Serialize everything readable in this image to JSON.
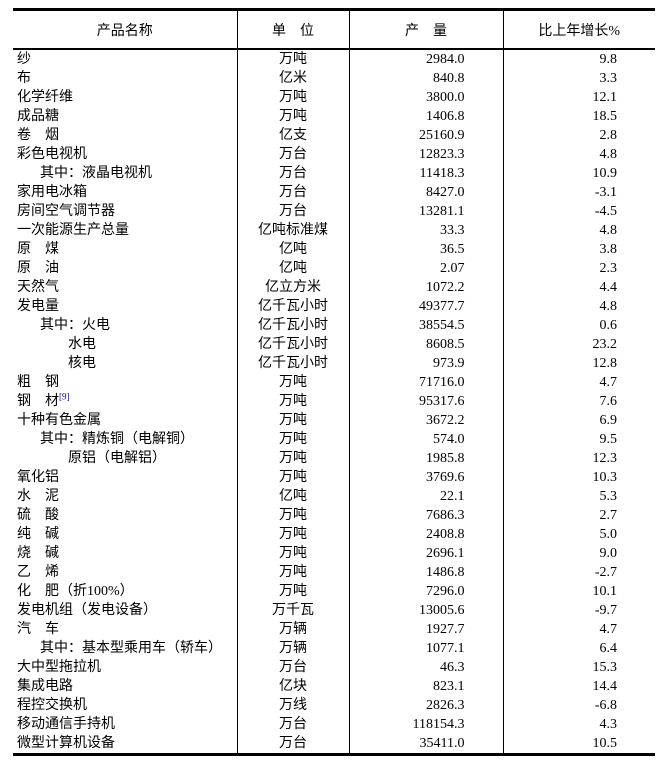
{
  "table": {
    "headers": {
      "name": "产品名称",
      "unit": "单　位",
      "output": "产　量",
      "growth": "比上年增长%"
    },
    "footnote_link_color": "#000099",
    "rows": [
      {
        "name": "纱",
        "indent": 0,
        "unit": "万吨",
        "output": "2984.0",
        "growth": "9.8"
      },
      {
        "name": "布",
        "indent": 0,
        "unit": "亿米",
        "output": "840.8",
        "growth": "3.3"
      },
      {
        "name": "化学纤维",
        "indent": 0,
        "unit": "万吨",
        "output": "3800.0",
        "growth": "12.1"
      },
      {
        "name": "成品糖",
        "indent": 0,
        "unit": "万吨",
        "output": "1406.8",
        "growth": "18.5"
      },
      {
        "name": "卷　烟",
        "indent": 0,
        "unit": "亿支",
        "output": "25160.9",
        "growth": "2.8"
      },
      {
        "name": "彩色电视机",
        "indent": 0,
        "unit": "万台",
        "output": "12823.3",
        "growth": "4.8"
      },
      {
        "name": "其中：液晶电视机",
        "indent": 1,
        "unit": "万台",
        "output": "11418.3",
        "growth": "10.9"
      },
      {
        "name": "家用电冰箱",
        "indent": 0,
        "unit": "万台",
        "output": "8427.0",
        "growth": "-3.1"
      },
      {
        "name": "房间空气调节器",
        "indent": 0,
        "unit": "万台",
        "output": "13281.1",
        "growth": "-4.5"
      },
      {
        "name": "一次能源生产总量",
        "indent": 0,
        "unit": "亿吨标准煤",
        "output": "33.3",
        "growth": "4.8"
      },
      {
        "name": "原　煤",
        "indent": 0,
        "unit": "亿吨",
        "output": "36.5",
        "growth": "3.8"
      },
      {
        "name": "原　油",
        "indent": 0,
        "unit": "亿吨",
        "output": "2.07",
        "growth": "2.3"
      },
      {
        "name": "天然气",
        "indent": 0,
        "unit": "亿立方米",
        "output": "1072.2",
        "growth": "4.4"
      },
      {
        "name": "发电量",
        "indent": 0,
        "unit": "亿千瓦小时",
        "output": "49377.7",
        "growth": "4.8"
      },
      {
        "name": "其中：火电",
        "indent": 1,
        "unit": "亿千瓦小时",
        "output": "38554.5",
        "growth": "0.6"
      },
      {
        "name": "水电",
        "indent": 2,
        "unit": "亿千瓦小时",
        "output": "8608.5",
        "growth": "23.2"
      },
      {
        "name": "核电",
        "indent": 2,
        "unit": "亿千瓦小时",
        "output": "973.9",
        "growth": "12.8"
      },
      {
        "name": "粗　钢",
        "indent": 0,
        "unit": "万吨",
        "output": "71716.0",
        "growth": "4.7"
      },
      {
        "name": "钢　材",
        "sup": "[9]",
        "indent": 0,
        "unit": "万吨",
        "output": "95317.6",
        "growth": "7.6"
      },
      {
        "name": "十种有色金属",
        "indent": 0,
        "unit": "万吨",
        "output": "3672.2",
        "growth": "6.9"
      },
      {
        "name": "其中：精炼铜（电解铜）",
        "indent": 1,
        "unit": "万吨",
        "output": "574.0",
        "growth": "9.5"
      },
      {
        "name": "原铝（电解铝）",
        "indent": 2,
        "unit": "万吨",
        "output": "1985.8",
        "growth": "12.3"
      },
      {
        "name": "氧化铝",
        "indent": 0,
        "unit": "万吨",
        "output": "3769.6",
        "growth": "10.3"
      },
      {
        "name": "水　泥",
        "indent": 0,
        "unit": "亿吨",
        "output": "22.1",
        "growth": "5.3"
      },
      {
        "name": "硫　酸",
        "indent": 0,
        "unit": "万吨",
        "output": "7686.3",
        "growth": "2.7"
      },
      {
        "name": "纯　碱",
        "indent": 0,
        "unit": "万吨",
        "output": "2408.8",
        "growth": "5.0"
      },
      {
        "name": "烧　碱",
        "indent": 0,
        "unit": "万吨",
        "output": "2696.1",
        "growth": "9.0"
      },
      {
        "name": "乙　烯",
        "indent": 0,
        "unit": "万吨",
        "output": "1486.8",
        "growth": "-2.7"
      },
      {
        "name": "化　肥（折100%）",
        "indent": 0,
        "unit": "万吨",
        "output": "7296.0",
        "growth": "10.1"
      },
      {
        "name": "发电机组（发电设备）",
        "indent": 0,
        "unit": "万千瓦",
        "output": "13005.6",
        "growth": "-9.7"
      },
      {
        "name": "汽　车",
        "indent": 0,
        "unit": "万辆",
        "output": "1927.7",
        "growth": "4.7"
      },
      {
        "name": "其中：基本型乘用车（轿车）",
        "indent": 1,
        "unit": "万辆",
        "output": "1077.1",
        "growth": "6.4"
      },
      {
        "name": "大中型拖拉机",
        "indent": 0,
        "unit": "万台",
        "output": "46.3",
        "growth": "15.3"
      },
      {
        "name": "集成电路",
        "indent": 0,
        "unit": "亿块",
        "output": "823.1",
        "growth": "14.4"
      },
      {
        "name": "程控交换机",
        "indent": 0,
        "unit": "万线",
        "output": "2826.3",
        "growth": "-6.8"
      },
      {
        "name": "移动通信手持机",
        "indent": 0,
        "unit": "万台",
        "output": "118154.3",
        "growth": "4.3"
      },
      {
        "name": "微型计算机设备",
        "indent": 0,
        "unit": "万台",
        "output": "35411.0",
        "growth": "10.5"
      }
    ]
  }
}
